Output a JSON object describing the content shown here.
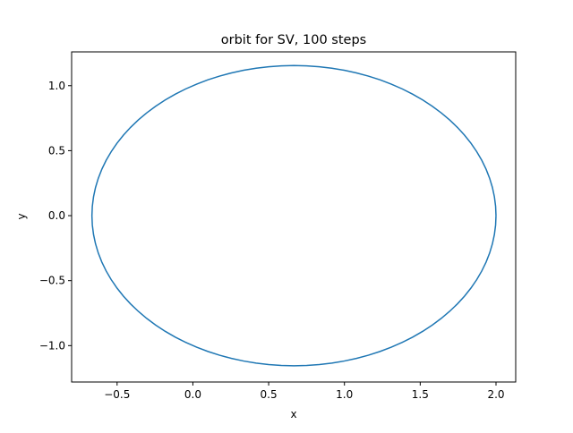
{
  "chart_data": {
    "type": "line",
    "title": "orbit for SV, 100 steps",
    "xlabel": "x",
    "ylabel": "y",
    "xlim": [
      -0.8,
      2.13
    ],
    "ylim": [
      -1.28,
      1.26
    ],
    "x_ticks": [
      -0.5,
      0.0,
      0.5,
      1.0,
      1.5,
      2.0
    ],
    "x_tick_labels": [
      "−0.5",
      "0.0",
      "0.5",
      "1.0",
      "1.5",
      "2.0"
    ],
    "y_ticks": [
      -1.0,
      -0.5,
      0.0,
      0.5,
      1.0
    ],
    "y_tick_labels": [
      "−1.0",
      "−0.5",
      "0.0",
      "0.5",
      "1.0"
    ],
    "grid": false,
    "legend": "none",
    "series": [
      {
        "color": "#1f77b4",
        "orbit": {
          "center": [
            0.667,
            0.0
          ],
          "semi_major_x": 1.333,
          "semi_minor_y": 1.155,
          "start_x": 2.0,
          "start_y": 0.0
        },
        "points": 100
      }
    ]
  }
}
